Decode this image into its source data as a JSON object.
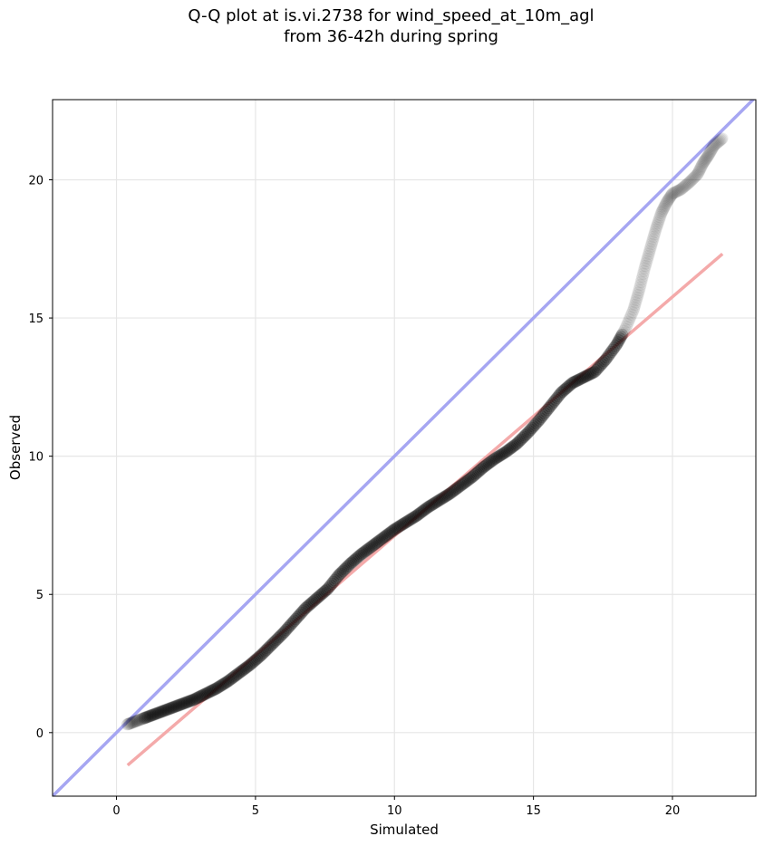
{
  "chart_data": {
    "type": "scatter",
    "title_line1": "Q-Q plot at is.vi.2738 for wind_speed_at_10m_agl",
    "title_line2": "from 36-42h during spring",
    "xlabel": "Simulated",
    "ylabel": "Observed",
    "xlim": [
      -2.3,
      23.0
    ],
    "ylim": [
      -2.3,
      22.9
    ],
    "xticks": [
      0,
      5,
      10,
      15,
      20
    ],
    "yticks": [
      0,
      5,
      10,
      15,
      20
    ],
    "grid": true,
    "identity_line": {
      "x": [
        -2.3,
        23.0
      ],
      "y": [
        -2.3,
        23.0
      ],
      "color": "#a6a6f2"
    },
    "fit_line": {
      "x": [
        0.4,
        21.8
      ],
      "y": [
        -1.18,
        17.32
      ],
      "color": "#f4aaaa"
    },
    "quantiles": {
      "x": [
        0.4,
        0.8,
        1.2,
        1.6,
        2.0,
        2.4,
        2.8,
        3.2,
        3.6,
        4.0,
        4.4,
        4.8,
        5.2,
        5.6,
        6.0,
        6.4,
        6.8,
        7.2,
        7.6,
        8.0,
        8.4,
        8.8,
        9.2,
        9.6,
        10.0,
        10.4,
        10.8,
        11.2,
        11.6,
        12.0,
        12.4,
        12.8,
        13.2,
        13.6,
        14.0,
        14.4,
        14.8,
        15.2,
        15.6,
        16.0,
        16.4,
        16.8,
        17.2,
        17.6,
        18.0,
        18.3,
        18.6,
        18.8,
        19.0,
        19.2,
        19.4,
        19.6,
        19.8,
        20.0,
        20.3,
        20.6,
        20.9,
        21.1,
        21.3,
        21.5,
        21.8
      ],
      "y": [
        0.3,
        0.45,
        0.6,
        0.75,
        0.9,
        1.05,
        1.2,
        1.4,
        1.6,
        1.85,
        2.15,
        2.45,
        2.8,
        3.2,
        3.6,
        4.05,
        4.5,
        4.85,
        5.2,
        5.7,
        6.1,
        6.45,
        6.75,
        7.05,
        7.35,
        7.6,
        7.85,
        8.15,
        8.4,
        8.65,
        8.95,
        9.25,
        9.6,
        9.9,
        10.15,
        10.45,
        10.85,
        11.3,
        11.8,
        12.3,
        12.65,
        12.85,
        13.05,
        13.5,
        14.05,
        14.6,
        15.3,
        16.0,
        16.8,
        17.5,
        18.2,
        18.8,
        19.2,
        19.5,
        19.65,
        19.9,
        20.2,
        20.6,
        20.9,
        21.25,
        21.5
      ]
    }
  }
}
